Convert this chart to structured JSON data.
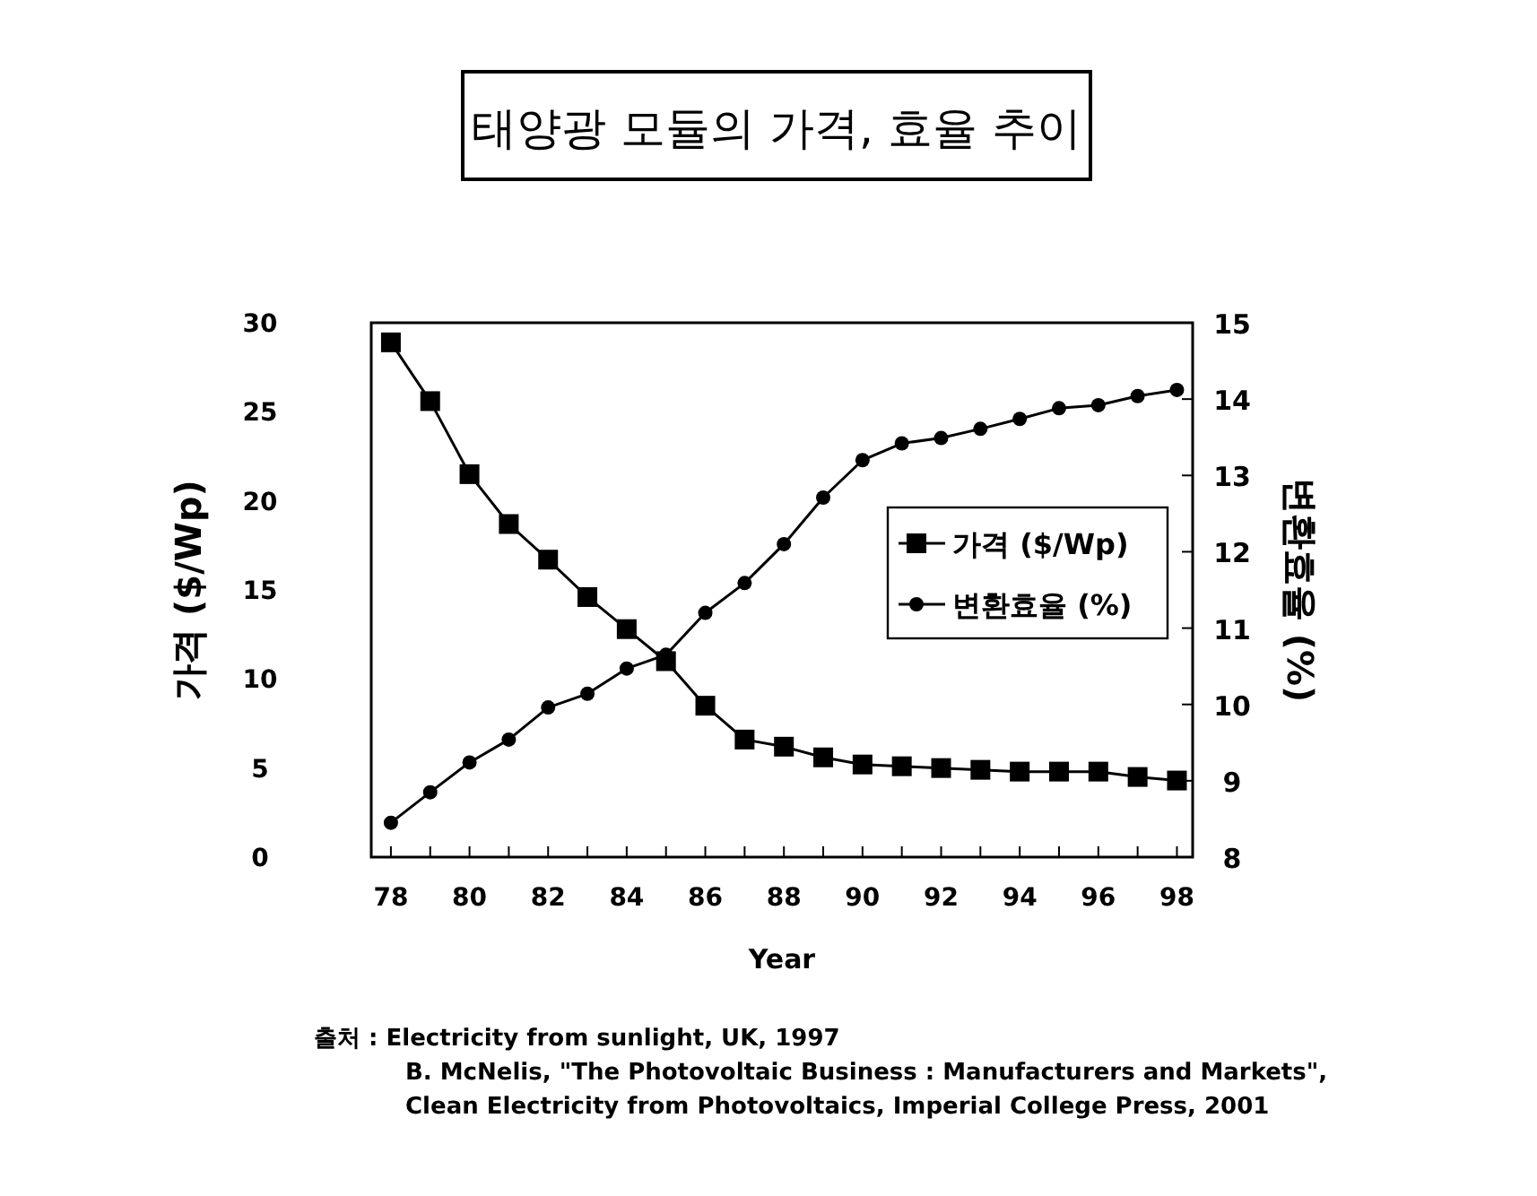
{
  "chart_data": {
    "type": "line",
    "title": "태양광 모듈의 가격, 효율 추이",
    "xlabel": "Year",
    "ylabel": "가격 ($/Wp)",
    "y2label": "변환효율 (%)",
    "x": [
      78,
      79,
      80,
      81,
      82,
      83,
      84,
      85,
      86,
      87,
      88,
      89,
      90,
      91,
      92,
      93,
      94,
      95,
      96,
      97,
      98
    ],
    "series": [
      {
        "name": "가격 ($/Wp)",
        "color": "#000000",
        "marker": "square",
        "values": [
          28.9,
          25.6,
          21.5,
          18.7,
          16.7,
          14.6,
          12.8,
          11.0,
          8.5,
          6.6,
          6.2,
          5.6,
          5.2,
          5.1,
          5.0,
          4.9,
          4.8,
          4.8,
          4.8,
          4.5,
          4.3
        ]
      },
      {
        "name": "변환효율 (%)",
        "color": "#000000",
        "marker": "circle",
        "axis": "y2",
        "values": [
          8.45,
          8.85,
          9.24,
          9.54,
          9.96,
          10.14,
          10.47,
          10.65,
          11.2,
          11.59,
          12.1,
          12.71,
          13.2,
          13.42,
          13.49,
          13.61,
          13.74,
          13.88,
          13.92,
          14.04,
          14.12
        ]
      }
    ],
    "xlim": [
      77.5,
      98.4
    ],
    "xticks": [
      78,
      {
        "value": 79,
        "label": null
      },
      80,
      {
        "value": 81,
        "label": null
      },
      82,
      {
        "value": 83,
        "label": null
      },
      84,
      {
        "value": 85,
        "label": null
      },
      86,
      {
        "value": 87,
        "label": null
      },
      88,
      {
        "value": 89,
        "label": null
      },
      90,
      {
        "value": 91,
        "label": null
      },
      92,
      {
        "value": 93,
        "label": null
      },
      94,
      {
        "value": 95,
        "label": null
      },
      96,
      {
        "value": 97,
        "label": null
      },
      98
    ],
    "ylim": [
      0,
      30
    ],
    "yticks": [
      0,
      5,
      10,
      15,
      20,
      25,
      30
    ],
    "y2lim": [
      8,
      15
    ],
    "y2ticks": [
      8,
      9,
      10,
      11,
      12,
      13,
      14,
      15
    ],
    "legend": "right",
    "line_style": "solid",
    "grid": false,
    "annotations": [
      "출처 : Electricity from sunlight, UK, 1997",
      "B. McNelis, \"The Photovoltaic Business : Manufacturers and Markets\",",
      "Clean Electricity from Photovoltaics, Imperial College Press, 2001"
    ]
  }
}
